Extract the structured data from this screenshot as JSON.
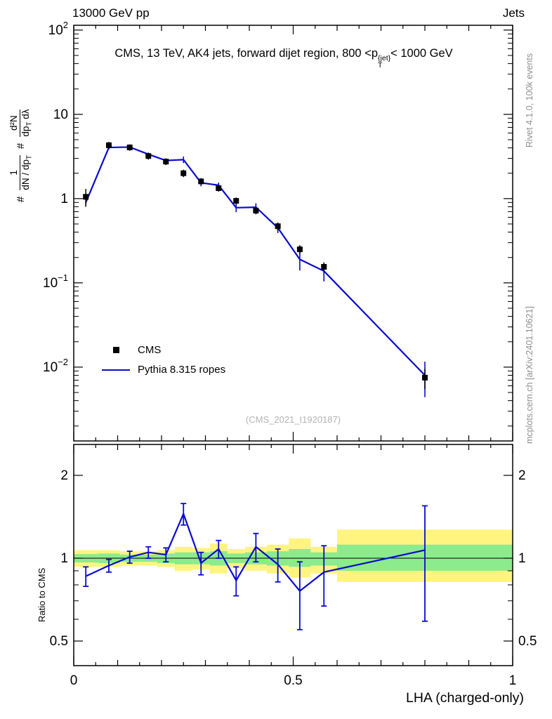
{
  "header": {
    "left": "13000 GeV pp",
    "right": "Jets"
  },
  "title": {
    "a": "CMS, 13 TeV, AK4 jets, forward dijet region, 800 <p",
    "sup": "{jet}",
    "sub": "T",
    "b": "< 1000 GeV"
  },
  "ylabel_parts": {
    "hash": "#",
    "f1_num": "1",
    "f1_den_a": "dN / dp",
    "f1_den_sub": "T",
    "f2_num": "d²N",
    "f2_den_a": "dp",
    "f2_den_sub": "T",
    "f2_den_b": " dλ"
  },
  "side_credits": {
    "rivet": "Rivet 4.1.0, 100k events",
    "mcplots": "mcplots.cern.ch [arXiv:2401.10621]"
  },
  "watermark": "(CMS_2021_I1920187)",
  "legend": {
    "items": [
      {
        "label": "CMS",
        "type": "marker"
      },
      {
        "label": "Pythia 8.315 ropes",
        "type": "line"
      }
    ]
  },
  "xlabel": "LHA (charged-only)",
  "ratio_ylabel": "Ratio to CMS",
  "chart_data": {
    "type": "line",
    "title": "CMS, 13 TeV, AK4 jets, forward dijet region, 800 < pT^{jet} < 1000 GeV",
    "xlabel": "LHA (charged-only)",
    "ylabel": "# 1/(dN/dpT) # d²N/(dpT dλ)",
    "legend_position": "middle-left",
    "grid": false,
    "xaxis": {
      "min": 0,
      "max": 1,
      "major": [
        0,
        0.5,
        1
      ],
      "major_labels": [
        "0",
        "0.5",
        "1"
      ],
      "medium_step": 0.1,
      "minor_step": 0.05
    },
    "main_axis": {
      "scale": "log",
      "ymin": 0.00133,
      "ymax": 114,
      "ticks": [
        {
          "v": 100,
          "label": "10",
          "exp": "2"
        },
        {
          "v": 10,
          "label": "10"
        },
        {
          "v": 1,
          "label": "1"
        },
        {
          "v": 0.1,
          "label": "10",
          "exp": "−1"
        },
        {
          "v": 0.01,
          "label": "10",
          "exp": "−2"
        }
      ]
    },
    "x": [
      0.0275,
      0.08,
      0.1275,
      0.17,
      0.21,
      0.25,
      0.29,
      0.33,
      0.37,
      0.415,
      0.465,
      0.515,
      0.57,
      0.8
    ],
    "series": [
      {
        "name": "CMS",
        "type": "scatter",
        "marker": "square",
        "color": "#000000",
        "values": [
          1.05,
          4.3,
          4.05,
          3.2,
          2.75,
          2.0,
          1.6,
          1.33,
          0.94,
          0.72,
          0.47,
          0.25,
          0.155,
          0.0075
        ],
        "errors": [
          0.25,
          0.4,
          0.35,
          0.3,
          0.25,
          0.2,
          0.15,
          0.12,
          0.09,
          0.07,
          0.05,
          0.03,
          0.02,
          0.002
        ]
      },
      {
        "name": "Pythia 8.315 ropes",
        "type": "line",
        "color": "#0a0ace",
        "values": [
          0.9,
          4.04,
          4.09,
          3.36,
          2.83,
          2.9,
          1.54,
          1.44,
          0.78,
          0.79,
          0.45,
          0.19,
          0.138,
          0.008
        ],
        "errors": [
          0.07,
          0.2,
          0.2,
          0.16,
          0.17,
          0.26,
          0.14,
          0.11,
          0.09,
          0.09,
          0.06,
          0.05,
          0.034,
          0.0036
        ]
      }
    ],
    "ratio": {
      "label": "Ratio to CMS",
      "scale": "log",
      "ymin": 0.407,
      "ymax": 2.59,
      "ticks": [
        {
          "v": 2,
          "label": "2"
        },
        {
          "v": 1,
          "label": "1"
        },
        {
          "v": 0.5,
          "label": "0.5"
        }
      ],
      "minor": [
        0.6,
        0.7,
        0.8,
        0.9
      ],
      "values": [
        0.86,
        0.94,
        1.01,
        1.05,
        1.03,
        1.45,
        0.96,
        1.08,
        0.83,
        1.1,
        0.95,
        0.76,
        0.89,
        1.07
      ],
      "errors": [
        0.07,
        0.05,
        0.05,
        0.05,
        0.06,
        0.13,
        0.09,
        0.08,
        0.1,
        0.13,
        0.13,
        0.21,
        0.22,
        0.48
      ],
      "band_edges": [
        0,
        0.055,
        0.105,
        0.15,
        0.19,
        0.23,
        0.27,
        0.31,
        0.35,
        0.39,
        0.44,
        0.49,
        0.54,
        0.6,
        1.0
      ],
      "band_outer_lo": [
        0.93,
        0.93,
        0.94,
        0.94,
        0.93,
        0.9,
        0.91,
        0.88,
        0.92,
        0.9,
        0.88,
        0.85,
        0.88,
        0.82
      ],
      "band_outer_hi": [
        1.07,
        1.07,
        1.06,
        1.06,
        1.07,
        1.1,
        1.09,
        1.13,
        1.08,
        1.1,
        1.12,
        1.18,
        1.1,
        1.27
      ],
      "band_inner_lo": [
        0.965,
        0.96,
        0.97,
        0.97,
        0.96,
        0.95,
        0.95,
        0.94,
        0.96,
        0.95,
        0.94,
        0.93,
        0.94,
        0.9
      ],
      "band_inner_hi": [
        1.035,
        1.04,
        1.03,
        1.03,
        1.04,
        1.05,
        1.05,
        1.06,
        1.04,
        1.05,
        1.06,
        1.08,
        1.05,
        1.12
      ],
      "band_colors": {
        "outer": "#fff47f",
        "inner": "#8ceb8c"
      }
    }
  }
}
